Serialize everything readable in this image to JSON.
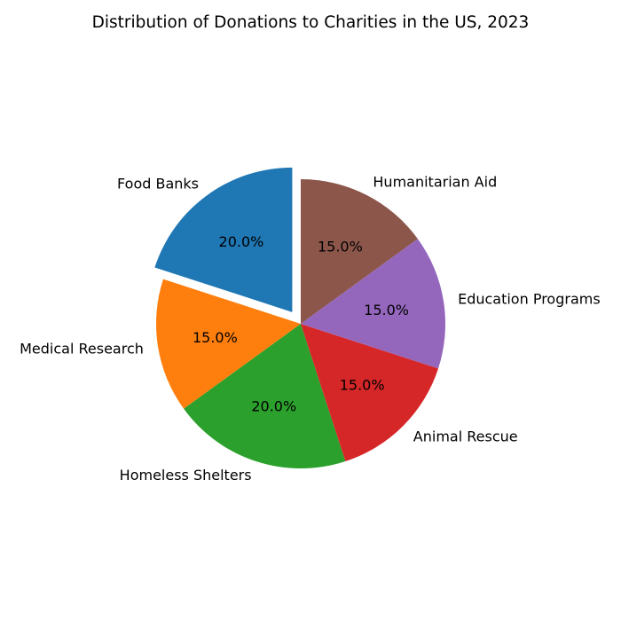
{
  "chart_data": {
    "type": "pie",
    "title": "Distribution of Donations to Charities in the US, 2023",
    "categories": [
      "Food Banks",
      "Medical Research",
      "Homeless Shelters",
      "Animal Rescue",
      "Education Programs",
      "Humanitarian Aid"
    ],
    "values": [
      20.0,
      15.0,
      20.0,
      15.0,
      15.0,
      15.0
    ],
    "value_labels": [
      "20.0%",
      "15.0%",
      "20.0%",
      "15.0%",
      "15.0%",
      "15.0%"
    ],
    "colors": [
      "#1f77b4",
      "#ff7f0e",
      "#2ca02c",
      "#d62728",
      "#9467bd",
      "#8c564b"
    ],
    "exploded": [
      true,
      false,
      false,
      false,
      false,
      false
    ],
    "explode_fraction": 0.1,
    "start_angle_deg": 90,
    "direction": "counterclockwise"
  }
}
